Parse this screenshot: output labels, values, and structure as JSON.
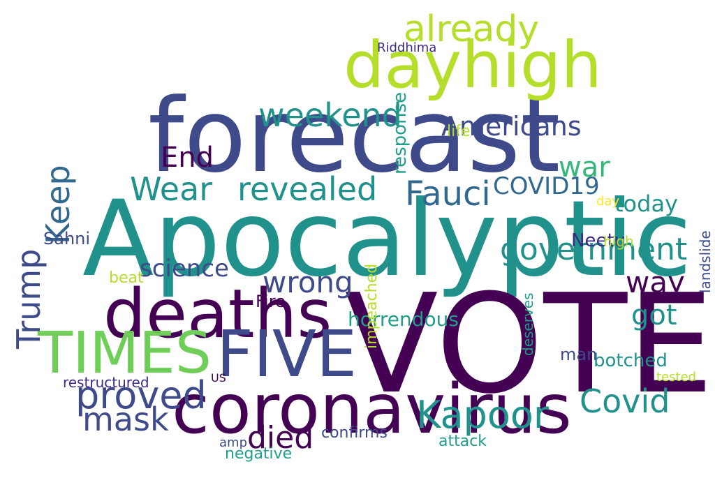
{
  "wordcloud": {
    "colors": {
      "purple": "#440154",
      "indigo": "#3b2a84",
      "blue": "#31688e",
      "slate": "#3e4a89",
      "teal": "#21918c",
      "sea": "#1f9e89",
      "green": "#35b779",
      "lime": "#6ece58",
      "yellowgreen": "#b5de2b",
      "yellow": "#fde725"
    },
    "words": [
      {
        "text": "Apocalyptic"
      },
      {
        "text": "VOTE"
      },
      {
        "text": "forecast"
      },
      {
        "text": "dayhigh"
      },
      {
        "text": "deaths"
      },
      {
        "text": "TIMES"
      },
      {
        "text": "FIVE"
      },
      {
        "text": "coronavirus"
      },
      {
        "text": "proved"
      },
      {
        "text": "Kapoor"
      },
      {
        "text": "already"
      },
      {
        "text": "weekend"
      },
      {
        "text": "war"
      },
      {
        "text": "government"
      },
      {
        "text": "Wear"
      },
      {
        "text": "revealed"
      },
      {
        "text": "Fauci"
      },
      {
        "text": "End"
      },
      {
        "text": "Americans"
      },
      {
        "text": "Trump"
      },
      {
        "text": "Keep"
      },
      {
        "text": "wrong"
      },
      {
        "text": "way"
      },
      {
        "text": "got"
      },
      {
        "text": "COVID19"
      },
      {
        "text": "today"
      },
      {
        "text": "science"
      },
      {
        "text": "mask"
      },
      {
        "text": "Covid"
      },
      {
        "text": "died"
      },
      {
        "text": "restructured"
      },
      {
        "text": "horrendous"
      },
      {
        "text": "Fire"
      },
      {
        "text": "botched"
      },
      {
        "text": "Riddhima"
      },
      {
        "text": "life"
      },
      {
        "text": "Neetu"
      },
      {
        "text": "Sahni"
      },
      {
        "text": "beat"
      },
      {
        "text": "tested"
      },
      {
        "text": "response"
      },
      {
        "text": "landslide"
      },
      {
        "text": "impeached"
      },
      {
        "text": "confirms"
      },
      {
        "text": "attack"
      },
      {
        "text": "negative"
      },
      {
        "text": "man"
      },
      {
        "text": "amp"
      },
      {
        "text": "deserves"
      },
      {
        "text": "high"
      },
      {
        "text": "US"
      },
      {
        "text": "day"
      }
    ]
  }
}
